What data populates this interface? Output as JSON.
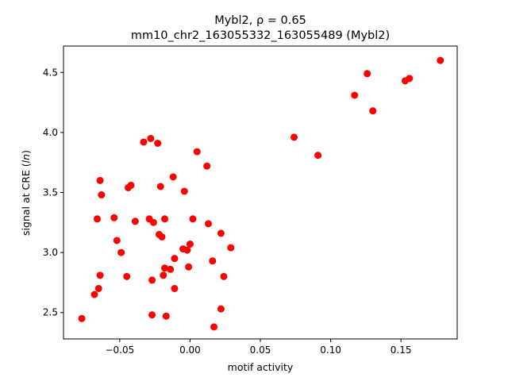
{
  "chart_data": {
    "type": "scatter",
    "title_line1": "Mybl2, ρ = 0.65",
    "title_line2": "mm10_chr2_163055332_163055489 (Mybl2)",
    "xlabel": "motif activity",
    "ylabel": "signal at CRE (ln)",
    "xlim": [
      -0.09,
      0.19
    ],
    "ylim": [
      2.28,
      4.72
    ],
    "xticks": [
      -0.05,
      0.0,
      0.05,
      0.1,
      0.15
    ],
    "xtick_labels": [
      "−0.05",
      "0.00",
      "0.05",
      "0.10",
      "0.15"
    ],
    "yticks": [
      2.5,
      3.0,
      3.5,
      4.0,
      4.5
    ],
    "ytick_labels": [
      "2.5",
      "3.0",
      "3.5",
      "4.0",
      "4.5"
    ],
    "grid": false,
    "marker_color": "#ff0000",
    "points": [
      {
        "x": -0.077,
        "y": 2.45
      },
      {
        "x": -0.068,
        "y": 2.65
      },
      {
        "x": -0.065,
        "y": 2.7
      },
      {
        "x": -0.064,
        "y": 2.81
      },
      {
        "x": -0.066,
        "y": 3.28
      },
      {
        "x": -0.064,
        "y": 3.6
      },
      {
        "x": -0.063,
        "y": 3.48
      },
      {
        "x": -0.054,
        "y": 3.29
      },
      {
        "x": -0.052,
        "y": 3.1
      },
      {
        "x": -0.049,
        "y": 3.0
      },
      {
        "x": -0.045,
        "y": 2.8
      },
      {
        "x": -0.044,
        "y": 3.54
      },
      {
        "x": -0.042,
        "y": 3.56
      },
      {
        "x": -0.039,
        "y": 3.26
      },
      {
        "x": -0.033,
        "y": 3.92
      },
      {
        "x": -0.029,
        "y": 3.28
      },
      {
        "x": -0.028,
        "y": 3.95
      },
      {
        "x": -0.027,
        "y": 2.77
      },
      {
        "x": -0.027,
        "y": 2.48
      },
      {
        "x": -0.026,
        "y": 3.25
      },
      {
        "x": -0.023,
        "y": 3.91
      },
      {
        "x": -0.022,
        "y": 3.15
      },
      {
        "x": -0.021,
        "y": 3.55
      },
      {
        "x": -0.02,
        "y": 3.13
      },
      {
        "x": -0.019,
        "y": 2.81
      },
      {
        "x": -0.018,
        "y": 3.28
      },
      {
        "x": -0.018,
        "y": 2.87
      },
      {
        "x": -0.017,
        "y": 2.47
      },
      {
        "x": -0.014,
        "y": 2.86
      },
      {
        "x": -0.012,
        "y": 3.63
      },
      {
        "x": -0.011,
        "y": 2.7
      },
      {
        "x": -0.011,
        "y": 2.95
      },
      {
        "x": -0.005,
        "y": 3.03
      },
      {
        "x": -0.004,
        "y": 3.51
      },
      {
        "x": -0.002,
        "y": 3.02
      },
      {
        "x": -0.001,
        "y": 2.88
      },
      {
        "x": 0.0,
        "y": 3.07
      },
      {
        "x": 0.002,
        "y": 3.28
      },
      {
        "x": 0.005,
        "y": 3.84
      },
      {
        "x": 0.012,
        "y": 3.72
      },
      {
        "x": 0.013,
        "y": 3.24
      },
      {
        "x": 0.016,
        "y": 2.93
      },
      {
        "x": 0.017,
        "y": 2.38
      },
      {
        "x": 0.022,
        "y": 3.16
      },
      {
        "x": 0.022,
        "y": 2.53
      },
      {
        "x": 0.024,
        "y": 2.8
      },
      {
        "x": 0.029,
        "y": 3.04
      },
      {
        "x": 0.074,
        "y": 3.96
      },
      {
        "x": 0.091,
        "y": 3.81
      },
      {
        "x": 0.117,
        "y": 4.31
      },
      {
        "x": 0.126,
        "y": 4.49
      },
      {
        "x": 0.13,
        "y": 4.18
      },
      {
        "x": 0.153,
        "y": 4.43
      },
      {
        "x": 0.156,
        "y": 4.45
      },
      {
        "x": 0.178,
        "y": 4.6
      }
    ]
  }
}
